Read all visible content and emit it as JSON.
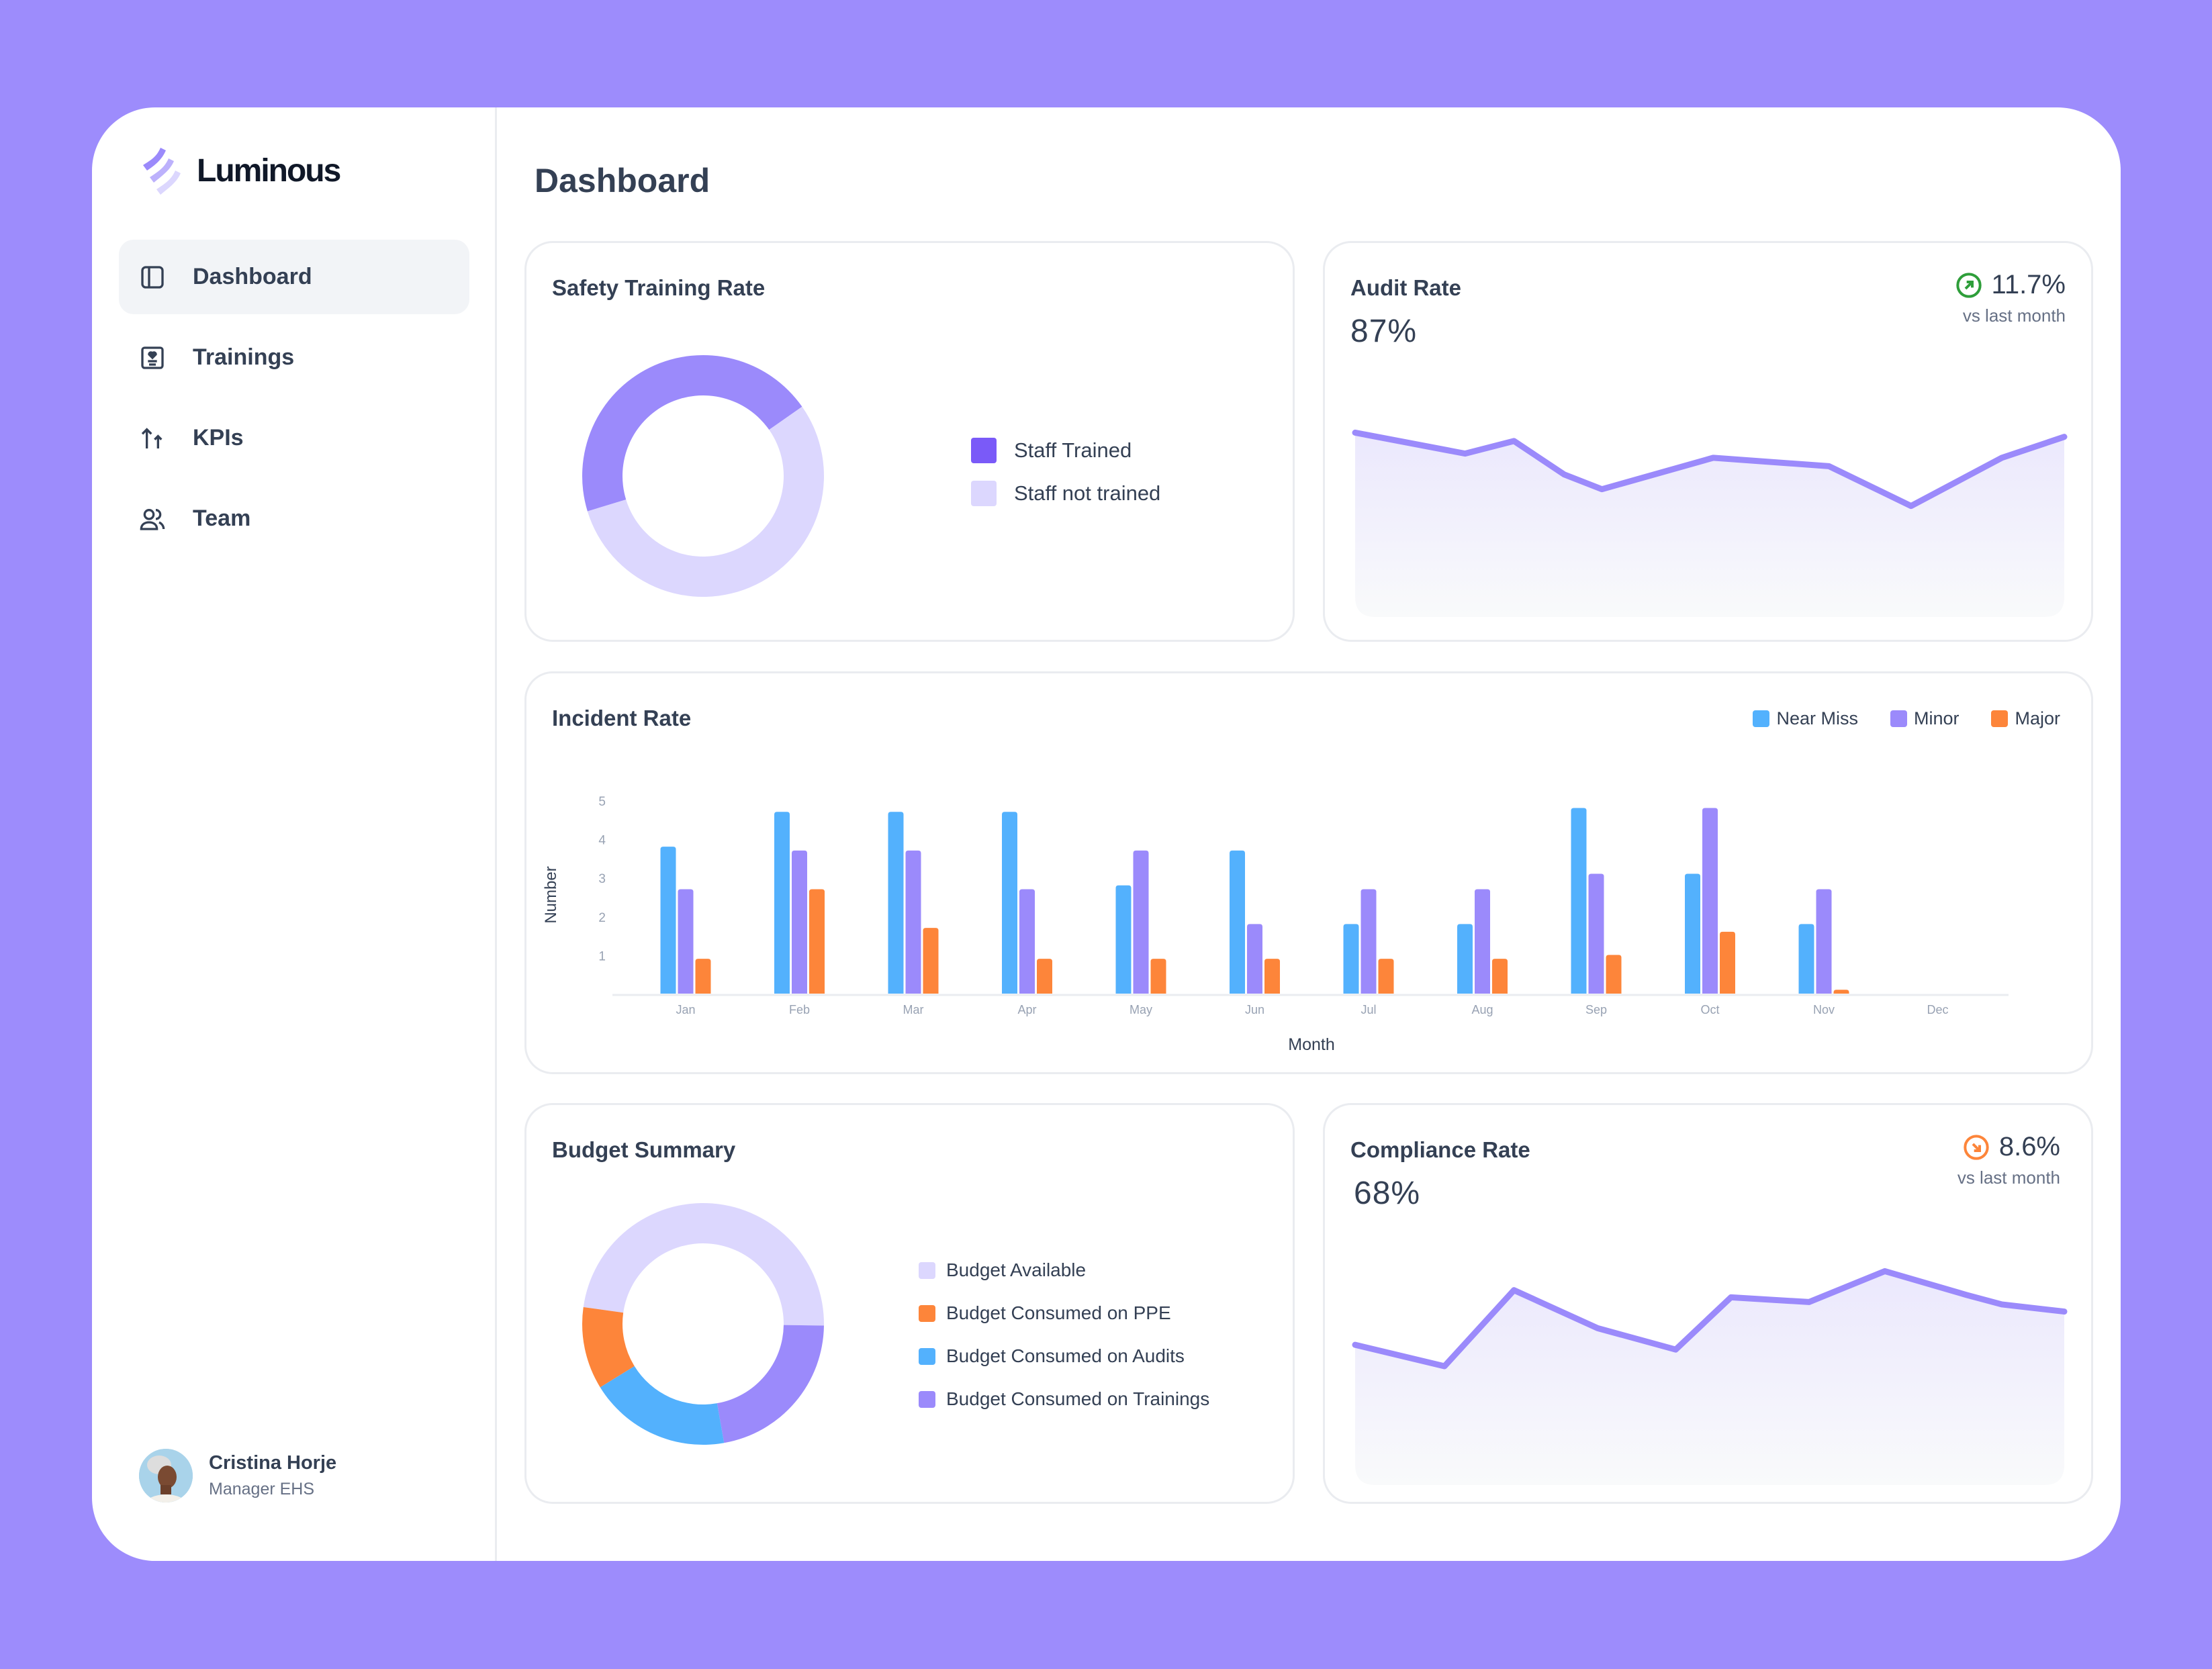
{
  "app": {
    "name": "Luminous"
  },
  "sidebar": {
    "items": [
      {
        "label": "Dashboard",
        "icon": "layout-sidebar-icon",
        "active": true
      },
      {
        "label": "Trainings",
        "icon": "training-badge-icon"
      },
      {
        "label": "KPIs",
        "icon": "arrows-up-icon"
      },
      {
        "label": "Team",
        "icon": "users-icon"
      }
    ],
    "user": {
      "name": "Cristina Horje",
      "role": "Manager EHS"
    }
  },
  "header": {
    "title": "Dashboard"
  },
  "colors": {
    "purple": "#9b8afb",
    "light_purple": "#dcd7fe",
    "dark_purple": "#7a5af8",
    "blue": "#53b1fd",
    "orange": "#fd853a",
    "green": "#2e9e3a"
  },
  "safety": {
    "title": "Safety Training Rate",
    "chart_data": {
      "type": "pie",
      "slices": [
        {
          "label": "Staff Trained",
          "value": 45,
          "color": "#9b8afb"
        },
        {
          "label": "Staff not trained",
          "value": 55,
          "color": "#dcd7fe"
        }
      ]
    }
  },
  "audit": {
    "title": "Audit Rate",
    "value": "87%",
    "delta": "11.7%",
    "delta_direction": "up",
    "delta_sub": "vs last month",
    "chart_data": {
      "type": "area",
      "x": [
        0,
        1.55,
        2.24,
        2.95,
        3.48,
        5.05,
        6.68,
        7.84,
        9.12,
        10
      ],
      "values": [
        88,
        78,
        84,
        68,
        61,
        76,
        72,
        53,
        76,
        86
      ],
      "ylim": [
        0,
        100
      ],
      "xlim": [
        0,
        10
      ]
    }
  },
  "incident": {
    "title": "Incident Rate",
    "chart_data": {
      "type": "bar",
      "xlabel": "Month",
      "ylabel": "Number",
      "categories": [
        "Jan",
        "Feb",
        "Mar",
        "Apr",
        "May",
        "Jun",
        "Jul",
        "Aug",
        "Sep",
        "Oct",
        "Nov",
        "Dec"
      ],
      "yticks": [
        "1",
        "2",
        "3",
        "4",
        "5"
      ],
      "ylim": [
        0,
        5
      ],
      "series": [
        {
          "name": "Near Miss",
          "color": "#53b1fd",
          "values": [
            3.8,
            4.7,
            4.7,
            4.7,
            2.8,
            3.7,
            1.8,
            1.8,
            4.8,
            3.1,
            1.8,
            0
          ]
        },
        {
          "name": "Minor",
          "color": "#9b8afb",
          "values": [
            2.7,
            3.7,
            3.7,
            2.7,
            3.7,
            1.8,
            2.7,
            2.7,
            3.1,
            4.8,
            2.7,
            0
          ]
        },
        {
          "name": "Major",
          "color": "#fd853a",
          "values": [
            0.9,
            2.7,
            1.7,
            0.9,
            0.9,
            0.9,
            0.9,
            0.9,
            1.0,
            1.6,
            0.1,
            0
          ]
        }
      ],
      "legend": "top-right"
    }
  },
  "budget": {
    "title": "Budget Summary",
    "legend": [
      {
        "label": "Budget Available",
        "color": "#dcd7fe"
      },
      {
        "label": "Budget Consumed on PPE",
        "color": "#fd853a"
      },
      {
        "label": "Budget Consumed on Audits",
        "color": "#53b1fd"
      },
      {
        "label": "Budget Consumed on Trainings",
        "color": "#9b8afb"
      }
    ],
    "chart_data": {
      "type": "pie",
      "slices": [
        {
          "label": "Budget Available",
          "value": 48,
          "color": "#dcd7fe"
        },
        {
          "label": "Budget Consumed on Trainings",
          "value": 22,
          "color": "#9b8afb"
        },
        {
          "label": "Budget Consumed on Audits",
          "value": 19,
          "color": "#53b1fd"
        },
        {
          "label": "Budget Consumed on PPE",
          "value": 11,
          "color": "#fd853a"
        }
      ]
    }
  },
  "compliance": {
    "title": "Compliance Rate",
    "value": "68%",
    "delta": "8.6%",
    "delta_direction": "down",
    "delta_sub": "vs last month",
    "chart_data": {
      "type": "area",
      "x": [
        0,
        1.26,
        2.24,
        3.42,
        4.52,
        5.3,
        6.4,
        7.47,
        8.62,
        9.12,
        10
      ],
      "values": [
        59,
        50,
        82,
        66,
        57,
        79,
        77,
        90,
        80,
        76,
        73
      ],
      "ylim": [
        0,
        100
      ],
      "xlim": [
        0,
        10
      ]
    }
  }
}
